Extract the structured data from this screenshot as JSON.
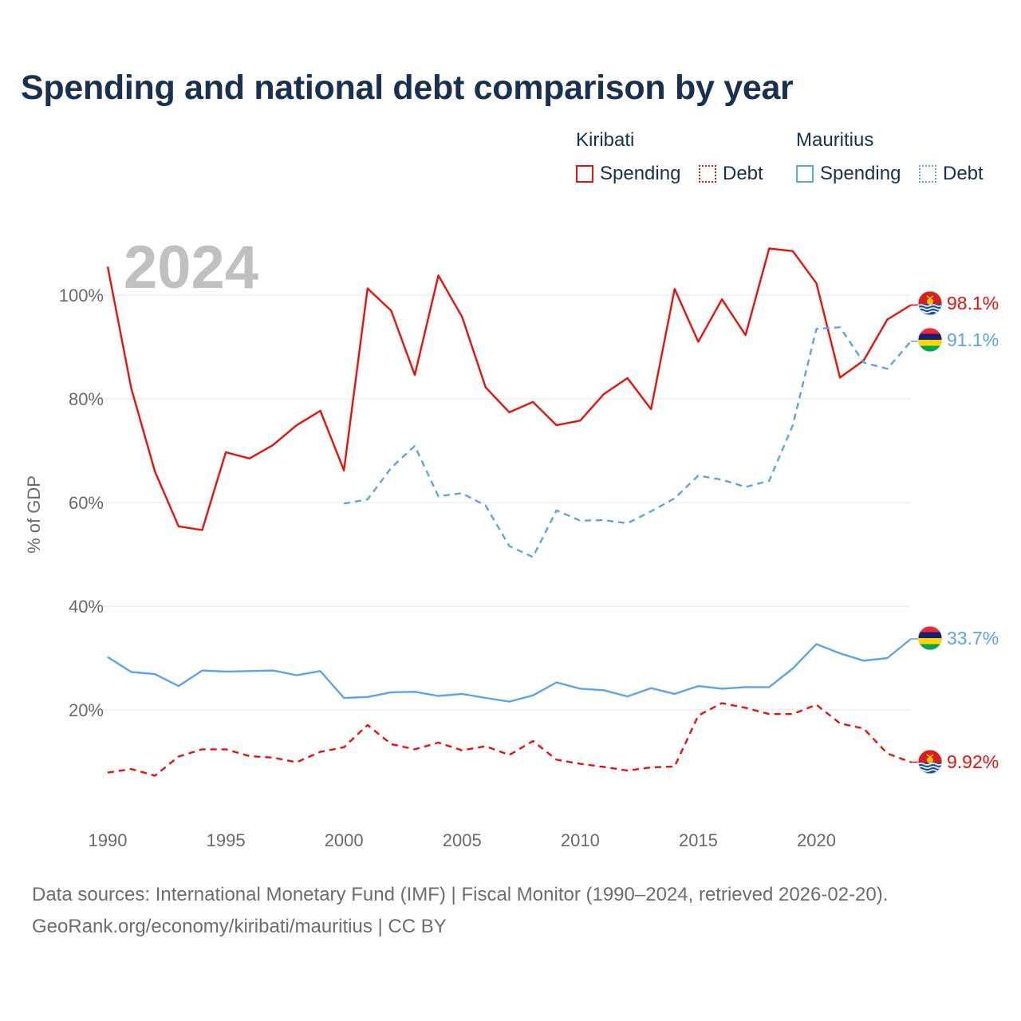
{
  "title": "Spending and national debt comparison by year",
  "year_watermark": "2024",
  "legend": {
    "groups": [
      {
        "name": "Kiribati",
        "items": [
          {
            "label": "Spending",
            "style": "solid",
            "color": "#e8120c"
          },
          {
            "label": "Debt",
            "style": "dotted",
            "color": "#e8120c"
          }
        ]
      },
      {
        "name": "Mauritius",
        "items": [
          {
            "label": "Spending",
            "style": "solid",
            "color": "#5ba4e6"
          },
          {
            "label": "Debt",
            "style": "dotted",
            "color": "#5ba4e6"
          }
        ]
      }
    ]
  },
  "sources": {
    "line1": "Data sources: International Monetary Fund (IMF) | Fiscal Monitor (1990–2024, retrieved 2026-02-20).",
    "line2": "GeoRank.org/economy/kiribati/mauritius | CC BY"
  },
  "chart_data": {
    "type": "line",
    "ylabel": "% of GDP",
    "xlabel": "",
    "xlim": [
      1990,
      2024
    ],
    "ylim": [
      0,
      110
    ],
    "x_ticks": [
      1990,
      1995,
      2000,
      2005,
      2010,
      2015,
      2020
    ],
    "y_ticks": [
      20,
      40,
      60,
      80,
      100
    ],
    "y_tick_labels": [
      "20%",
      "40%",
      "60%",
      "80%",
      "100%"
    ],
    "grid": true,
    "series": [
      {
        "name": "Kiribati Spending",
        "country": "Kiribati",
        "metric": "Spending",
        "color": "#e8120c",
        "dash": "solid",
        "x": [
          1990,
          1991,
          1992,
          1993,
          1994,
          1995,
          1996,
          1997,
          1998,
          1999,
          2000,
          2001,
          2002,
          2003,
          2004,
          2005,
          2006,
          2007,
          2008,
          2009,
          2010,
          2011,
          2012,
          2013,
          2014,
          2015,
          2016,
          2017,
          2018,
          2019,
          2020,
          2021,
          2022,
          2023,
          2024
        ],
        "values": [
          105.5,
          82.0,
          66.0,
          55.4,
          54.7,
          69.7,
          68.5,
          71.1,
          74.9,
          77.7,
          66.2,
          101.3,
          97.0,
          84.6,
          103.8,
          95.8,
          82.2,
          77.4,
          79.4,
          74.9,
          75.8,
          80.9,
          84.0,
          78.0,
          101.2,
          91.0,
          99.2,
          92.3,
          109.0,
          108.5,
          102.3,
          84.1,
          87.4,
          95.3,
          98.1
        ],
        "end_label": "98.1%"
      },
      {
        "name": "Mauritius Debt",
        "country": "Mauritius",
        "metric": "Debt",
        "color": "#5ba4e6",
        "dash": "dashed",
        "x": [
          2000,
          2001,
          2002,
          2003,
          2004,
          2005,
          2006,
          2007,
          2008,
          2009,
          2010,
          2011,
          2012,
          2013,
          2014,
          2015,
          2016,
          2017,
          2018,
          2019,
          2020,
          2021,
          2022,
          2023,
          2024
        ],
        "values": [
          59.8,
          60.6,
          66.7,
          70.9,
          61.2,
          61.8,
          59.4,
          51.6,
          49.5,
          58.5,
          56.5,
          56.6,
          56.0,
          58.3,
          60.8,
          65.2,
          64.4,
          63.0,
          64.2,
          74.9,
          93.5,
          93.8,
          87.0,
          85.8,
          91.1
        ],
        "end_label": "91.1%"
      },
      {
        "name": "Mauritius Spending",
        "country": "Mauritius",
        "metric": "Spending",
        "color": "#5ba4e6",
        "dash": "solid",
        "x": [
          1990,
          1991,
          1992,
          1993,
          1994,
          1995,
          1996,
          1997,
          1998,
          1999,
          2000,
          2001,
          2002,
          2003,
          2004,
          2005,
          2006,
          2007,
          2008,
          2009,
          2010,
          2011,
          2012,
          2013,
          2014,
          2015,
          2016,
          2017,
          2018,
          2019,
          2020,
          2021,
          2022,
          2023,
          2024
        ],
        "values": [
          30.2,
          27.3,
          26.9,
          24.6,
          27.6,
          27.4,
          27.5,
          27.6,
          26.7,
          27.5,
          22.3,
          22.5,
          23.4,
          23.5,
          22.7,
          23.1,
          22.3,
          21.6,
          22.8,
          25.3,
          24.1,
          23.8,
          22.6,
          24.2,
          23.1,
          24.6,
          24.1,
          24.4,
          24.4,
          28.0,
          32.7,
          30.9,
          29.5,
          30.0,
          33.7
        ],
        "end_label": "33.7%"
      },
      {
        "name": "Kiribati Debt",
        "country": "Kiribati",
        "metric": "Debt",
        "color": "#e8120c",
        "dash": "dashed",
        "x": [
          1990,
          1991,
          1992,
          1993,
          1994,
          1995,
          1996,
          1997,
          1998,
          1999,
          2000,
          2001,
          2002,
          2003,
          2004,
          2005,
          2006,
          2007,
          2008,
          2009,
          2010,
          2011,
          2012,
          2013,
          2014,
          2015,
          2016,
          2017,
          2018,
          2019,
          2020,
          2021,
          2022,
          2023,
          2024
        ],
        "values": [
          7.9,
          8.6,
          7.3,
          11.0,
          12.4,
          12.4,
          11.1,
          10.8,
          9.9,
          11.9,
          12.8,
          17.1,
          13.4,
          12.4,
          13.7,
          12.2,
          13.0,
          11.3,
          14.0,
          10.4,
          9.6,
          9.0,
          8.3,
          8.9,
          9.1,
          18.9,
          21.3,
          20.4,
          19.2,
          19.2,
          21.0,
          17.4,
          16.4,
          11.6,
          9.92
        ],
        "end_label": "9.92%"
      }
    ]
  }
}
